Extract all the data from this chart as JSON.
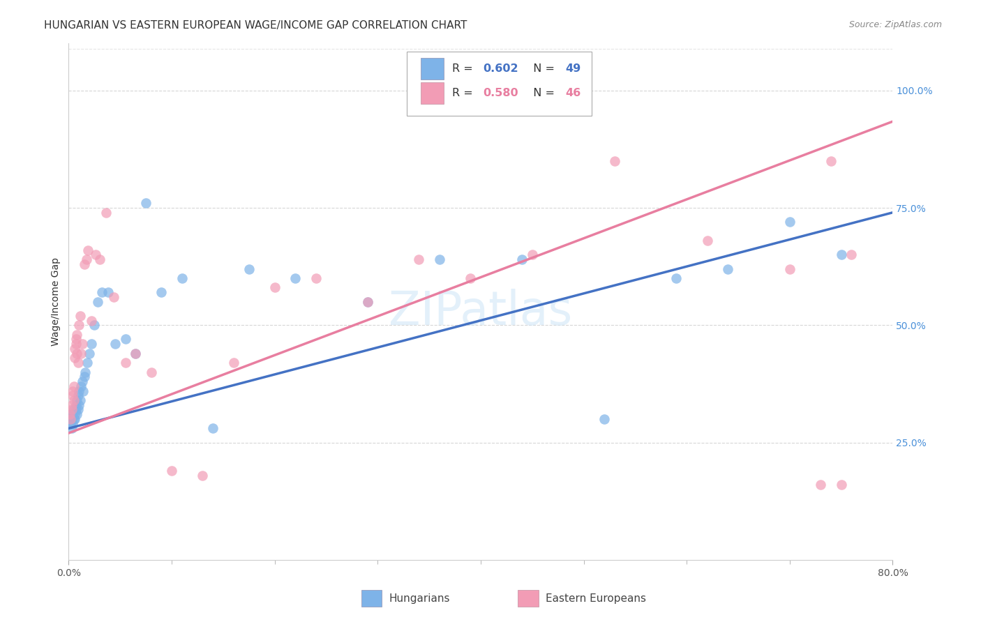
{
  "title": "HUNGARIAN VS EASTERN EUROPEAN WAGE/INCOME GAP CORRELATION CHART",
  "source": "Source: ZipAtlas.com",
  "ylabel": "Wage/Income Gap",
  "ytick_labels": [
    "25.0%",
    "50.0%",
    "75.0%",
    "100.0%"
  ],
  "ytick_values": [
    0.25,
    0.5,
    0.75,
    1.0
  ],
  "xlim": [
    0.0,
    0.8
  ],
  "ylim": [
    0.0,
    1.1
  ],
  "watermark": "ZIPatlas",
  "hungarian_color": "#7eb3e8",
  "eastern_color": "#f29cb5",
  "hungarian_line_color": "#4472c4",
  "eastern_line_color": "#e87ea0",
  "dashed_line_color": "#aaaaaa",
  "grid_color": "#cccccc",
  "background_color": "#ffffff",
  "title_fontsize": 11,
  "axis_label_fontsize": 10,
  "tick_fontsize": 10,
  "right_ytick_color": "#4a90d9",
  "source_color": "#888888",
  "hungarian_trend": {
    "intercept": 0.28,
    "slope": 0.575
  },
  "eastern_trend": {
    "intercept": 0.27,
    "slope": 0.83
  },
  "hungarian_x": [
    0.001,
    0.002,
    0.002,
    0.003,
    0.003,
    0.004,
    0.004,
    0.005,
    0.005,
    0.006,
    0.006,
    0.007,
    0.007,
    0.008,
    0.008,
    0.009,
    0.009,
    0.01,
    0.01,
    0.011,
    0.012,
    0.013,
    0.014,
    0.015,
    0.016,
    0.018,
    0.02,
    0.022,
    0.025,
    0.028,
    0.032,
    0.038,
    0.045,
    0.055,
    0.065,
    0.075,
    0.09,
    0.11,
    0.14,
    0.175,
    0.22,
    0.29,
    0.36,
    0.44,
    0.52,
    0.59,
    0.64,
    0.7,
    0.75
  ],
  "hungarian_y": [
    0.3,
    0.29,
    0.31,
    0.28,
    0.3,
    0.31,
    0.29,
    0.3,
    0.32,
    0.31,
    0.3,
    0.32,
    0.33,
    0.31,
    0.34,
    0.32,
    0.35,
    0.33,
    0.36,
    0.34,
    0.37,
    0.38,
    0.36,
    0.39,
    0.4,
    0.42,
    0.44,
    0.46,
    0.5,
    0.55,
    0.57,
    0.57,
    0.46,
    0.47,
    0.44,
    0.76,
    0.57,
    0.6,
    0.28,
    0.62,
    0.6,
    0.55,
    0.64,
    0.64,
    0.3,
    0.6,
    0.62,
    0.72,
    0.65
  ],
  "eastern_x": [
    0.001,
    0.002,
    0.003,
    0.003,
    0.004,
    0.004,
    0.005,
    0.005,
    0.006,
    0.006,
    0.007,
    0.007,
    0.008,
    0.008,
    0.009,
    0.01,
    0.011,
    0.012,
    0.013,
    0.015,
    0.017,
    0.019,
    0.022,
    0.026,
    0.03,
    0.036,
    0.044,
    0.055,
    0.065,
    0.08,
    0.1,
    0.13,
    0.16,
    0.2,
    0.24,
    0.29,
    0.34,
    0.39,
    0.45,
    0.53,
    0.62,
    0.7,
    0.73,
    0.74,
    0.75,
    0.76
  ],
  "eastern_y": [
    0.31,
    0.3,
    0.32,
    0.33,
    0.35,
    0.36,
    0.34,
    0.37,
    0.43,
    0.45,
    0.46,
    0.47,
    0.44,
    0.48,
    0.42,
    0.5,
    0.52,
    0.44,
    0.46,
    0.63,
    0.64,
    0.66,
    0.51,
    0.65,
    0.64,
    0.74,
    0.56,
    0.42,
    0.44,
    0.4,
    0.19,
    0.18,
    0.42,
    0.58,
    0.6,
    0.55,
    0.64,
    0.6,
    0.65,
    0.85,
    0.68,
    0.62,
    0.16,
    0.85,
    0.16,
    0.65
  ]
}
